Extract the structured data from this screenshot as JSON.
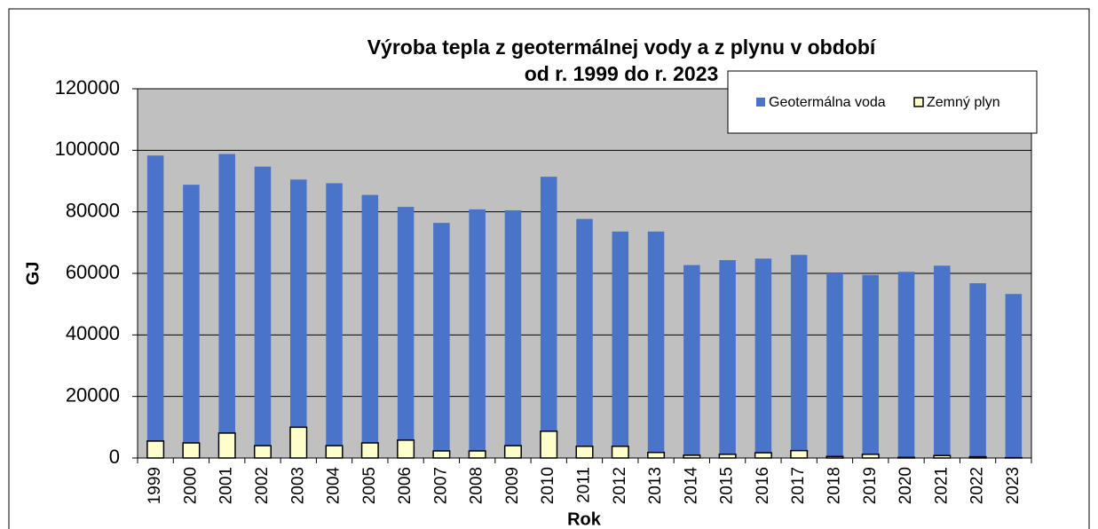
{
  "chart_data": {
    "type": "bar",
    "title": [
      "Výroba tepla z geotermálnej vody a z plynu v období",
      "od r. 1999 do r. 2023"
    ],
    "x_label": "Rok",
    "y_label": "GJ",
    "categories": [
      "1999",
      "2000",
      "2001",
      "2002",
      "2003",
      "2004",
      "2005",
      "2006",
      "2007",
      "2008",
      "2009",
      "2010",
      "2011",
      "2012",
      "2013",
      "2014",
      "2015",
      "2016",
      "2017",
      "2018",
      "2019",
      "2020",
      "2021",
      "2022",
      "2023"
    ],
    "series": [
      {
        "name": "Geotermálna voda",
        "color": "#4a74c8",
        "values": [
          98300,
          88800,
          98800,
          94700,
          90500,
          89300,
          85500,
          81600,
          76400,
          80800,
          80500,
          91400,
          77700,
          73600,
          73600,
          62700,
          64300,
          64800,
          66000,
          60000,
          59500,
          60500,
          62500,
          56800,
          53300
        ]
      },
      {
        "name": "Zemný plyn",
        "color": "#ffffcc",
        "values": [
          5500,
          4900,
          8100,
          4000,
          10000,
          4000,
          4900,
          5800,
          2300,
          2300,
          4000,
          8700,
          3800,
          3800,
          1800,
          900,
          1200,
          1700,
          2400,
          500,
          1200,
          200,
          800,
          400,
          100
        ]
      }
    ],
    "ylim": [
      0,
      120000
    ],
    "yticks": [
      0,
      20000,
      40000,
      60000,
      80000,
      100000,
      120000
    ],
    "grid": true,
    "legend": "top-right"
  }
}
